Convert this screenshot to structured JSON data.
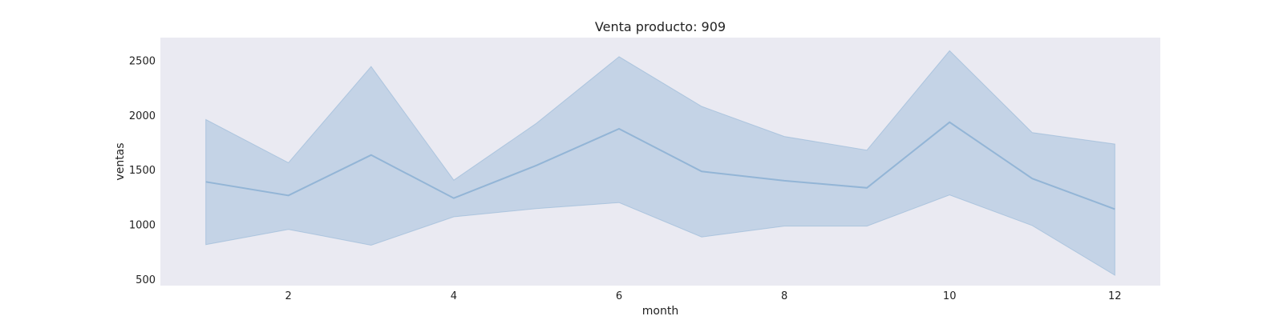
{
  "chart_data": {
    "type": "area",
    "title": "Venta producto: 909",
    "xlabel": "month",
    "ylabel": "ventas",
    "x": [
      1,
      2,
      3,
      4,
      5,
      6,
      7,
      8,
      9,
      10,
      11,
      12
    ],
    "xlim": [
      0.45,
      12.55
    ],
    "ylim": [
      440,
      2710
    ],
    "x_ticks": [
      2,
      4,
      6,
      8,
      10,
      12
    ],
    "y_ticks": [
      500,
      1000,
      1500,
      2000,
      2500
    ],
    "grid": false,
    "series": [
      {
        "mean": [
          1390,
          1265,
          1635,
          1240,
          1540,
          1875,
          1485,
          1400,
          1335,
          1935,
          1420,
          1140
        ],
        "lower": [
          815,
          955,
          810,
          1070,
          1145,
          1200,
          885,
          985,
          985,
          1270,
          990,
          535
        ],
        "upper": [
          1960,
          1565,
          2445,
          1405,
          1925,
          2535,
          2080,
          1805,
          1680,
          2590,
          1840,
          1735
        ]
      }
    ],
    "colors": {
      "plot_background": "#eaeaf2",
      "band_fill": "#a4bfdc",
      "line": "#93b5d6"
    }
  }
}
